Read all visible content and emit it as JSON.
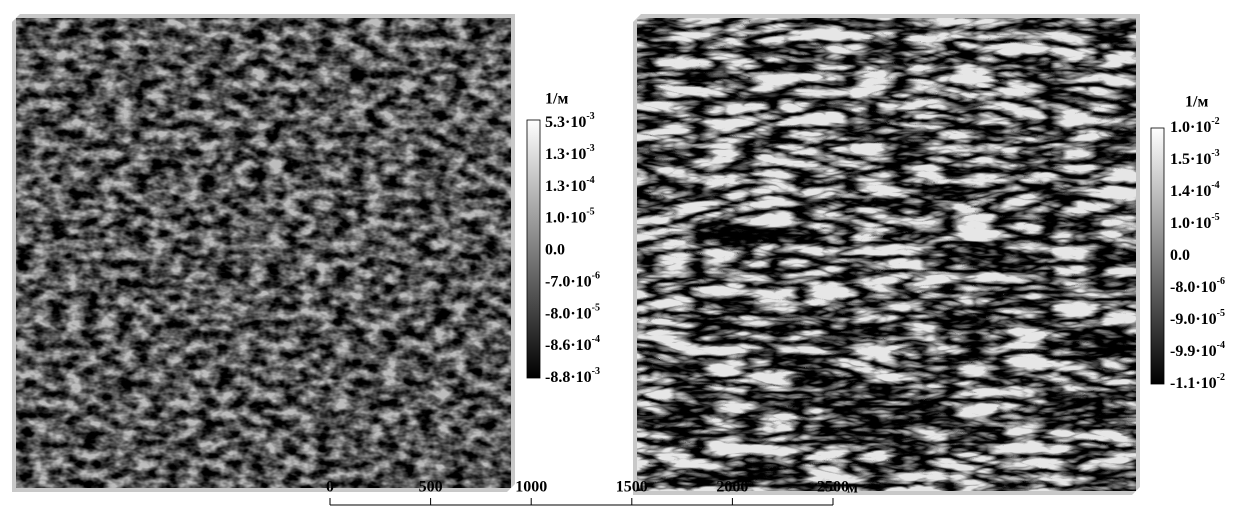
{
  "left_panel": {
    "colorbar": {
      "unit": "1/м",
      "labels": [
        {
          "base": "5.3·10",
          "exp": "-3"
        },
        {
          "base": "1.3·10",
          "exp": "-3"
        },
        {
          "base": "1.3·10",
          "exp": "-4"
        },
        {
          "base": "1.0·10",
          "exp": "-5"
        },
        {
          "base": "0.0"
        },
        {
          "base": "-7.0·10",
          "exp": "-6"
        },
        {
          "base": "-8.0·10",
          "exp": "-5"
        },
        {
          "base": "-8.6·10",
          "exp": "-4"
        },
        {
          "base": "-8.8·10",
          "exp": "-3"
        }
      ]
    }
  },
  "right_panel": {
    "colorbar": {
      "unit": "1/м",
      "labels": [
        {
          "base": "1.0·10",
          "exp": "-2"
        },
        {
          "base": "1.5·10",
          "exp": "-3"
        },
        {
          "base": "1.4·10",
          "exp": "-4"
        },
        {
          "base": "1.0·10",
          "exp": "-5"
        },
        {
          "base": "0.0"
        },
        {
          "base": "-8.0·10",
          "exp": "-6"
        },
        {
          "base": "-9.0·10",
          "exp": "-5"
        },
        {
          "base": "-9.9·10",
          "exp": "-4"
        },
        {
          "base": "-1.1·10",
          "exp": "-2"
        }
      ]
    }
  },
  "scale_bar": {
    "ticks": [
      0,
      500,
      1000,
      1500,
      2000,
      2500
    ],
    "unit": "м"
  }
}
